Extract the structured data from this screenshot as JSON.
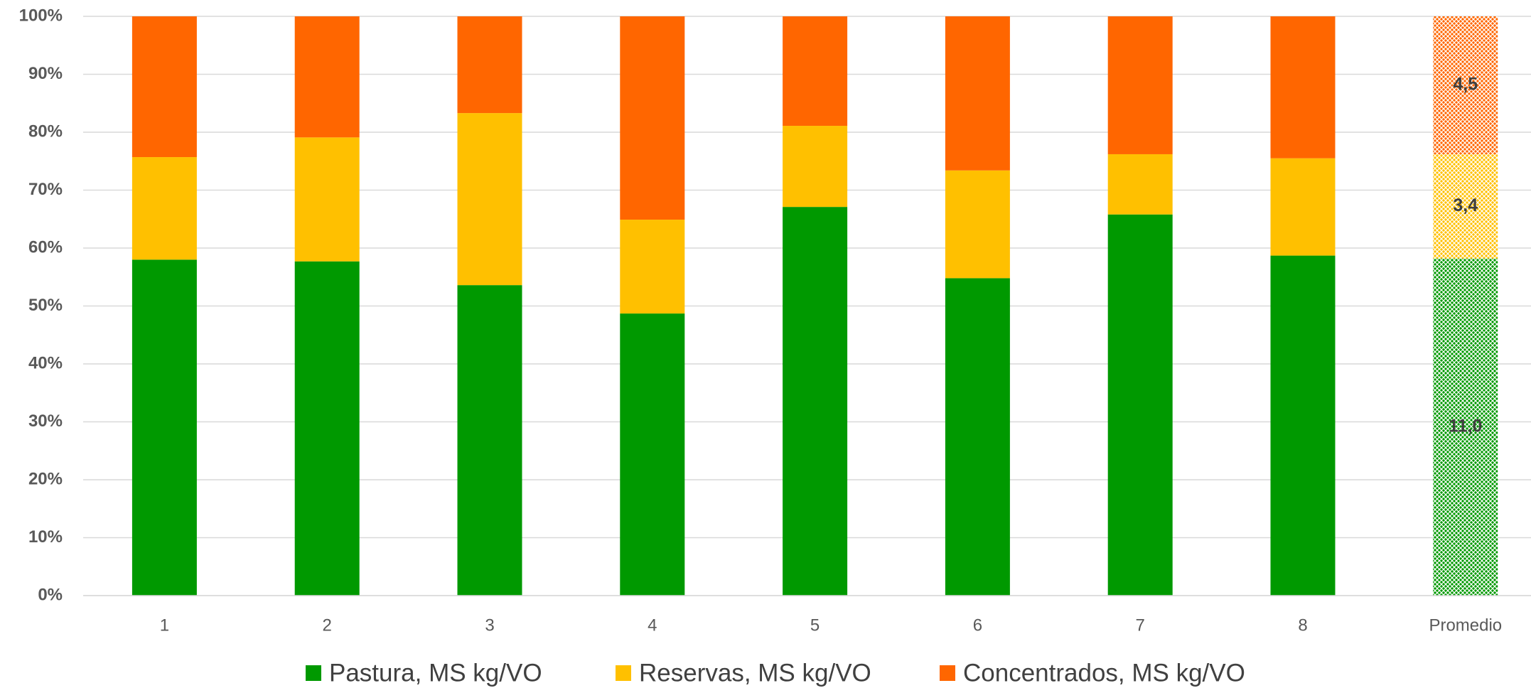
{
  "chart_data": {
    "type": "stacked_bar_percent",
    "categories": [
      "1",
      "2",
      "3",
      "4",
      "5",
      "6",
      "7",
      "8",
      "Promedio"
    ],
    "series": [
      {
        "name": "Pastura, MS kg/VO",
        "color": "#009900",
        "values": [
          58.0,
          57.7,
          53.6,
          48.7,
          67.1,
          54.8,
          65.8,
          58.7,
          58.2
        ],
        "value_labels": [
          null,
          null,
          null,
          null,
          null,
          null,
          null,
          null,
          "11,0"
        ]
      },
      {
        "name": "Reservas, MS kg/VO",
        "color": "#FFC000",
        "values": [
          17.7,
          21.4,
          29.7,
          16.2,
          14.0,
          18.6,
          10.4,
          16.8,
          18.0
        ],
        "value_labels": [
          null,
          null,
          null,
          null,
          null,
          null,
          null,
          null,
          "3,4"
        ]
      },
      {
        "name": "Concentrados, MS kg/VO",
        "color": "#FF6600",
        "values": [
          24.3,
          20.9,
          16.7,
          35.1,
          18.9,
          26.6,
          23.8,
          24.5,
          23.8
        ],
        "value_labels": [
          null,
          null,
          null,
          null,
          null,
          null,
          null,
          null,
          "4,5"
        ]
      }
    ],
    "ylim": [
      0,
      100
    ],
    "yticks": [
      {
        "value": 0,
        "label": "0%"
      },
      {
        "value": 10,
        "label": "10%"
      },
      {
        "value": 20,
        "label": "20%"
      },
      {
        "value": 30,
        "label": "30%"
      },
      {
        "value": 40,
        "label": "40%"
      },
      {
        "value": 50,
        "label": "50%"
      },
      {
        "value": 60,
        "label": "60%"
      },
      {
        "value": 70,
        "label": "70%"
      },
      {
        "value": 80,
        "label": "80%"
      },
      {
        "value": 90,
        "label": "90%"
      },
      {
        "value": 100,
        "label": "100%"
      }
    ],
    "grid": true,
    "legend": "bottom",
    "hatch_last": true
  }
}
